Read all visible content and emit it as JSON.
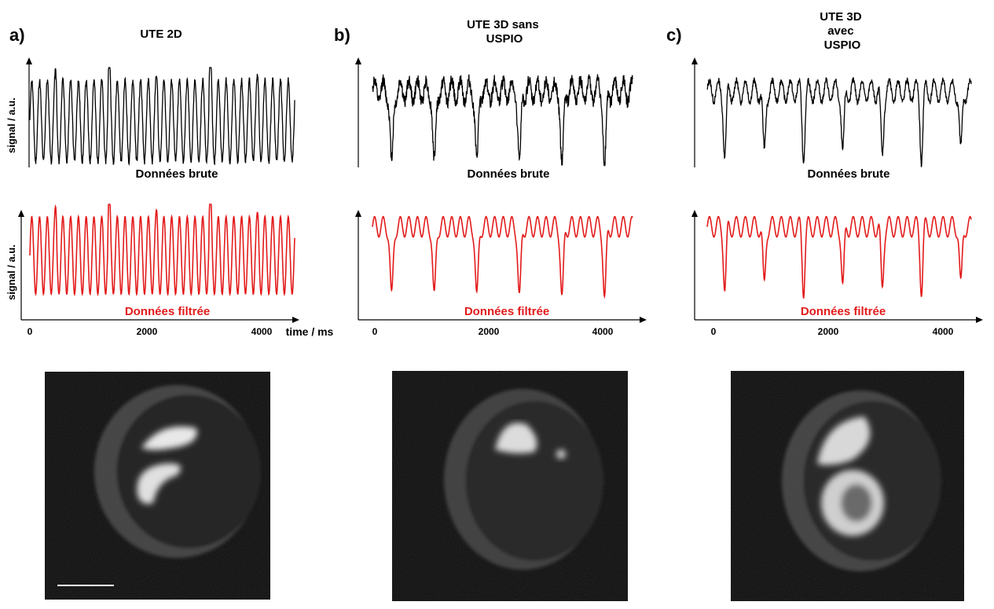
{
  "chart_data": [
    {
      "panel": "a)",
      "title": "UTE 2D",
      "type": "line",
      "ylabel": "signal / a.u.",
      "xlabel": "time / ms",
      "x_ticks": [
        "0",
        "2000",
        "4000"
      ],
      "xlim": [
        0,
        4600
      ],
      "raw_caption": "Données brute",
      "filtered_caption": "Données filtrée",
      "series": [
        {
          "trace": "raw",
          "color": "#000000",
          "cardiac_period_ms": 135,
          "respiratory_period_ms": 880
        },
        {
          "trace": "filtered",
          "color": "#e31b1b",
          "cardiac_period_ms": 135,
          "respiratory_period_ms": 880
        }
      ]
    },
    {
      "panel": "b)",
      "title": "UTE 3D sans\nUSPIO",
      "type": "line",
      "x_ticks": [
        "0",
        "2000",
        "4000"
      ],
      "xlim": [
        0,
        4700
      ],
      "raw_caption": "Données brute",
      "filtered_caption": "Données filtrée",
      "series": [
        {
          "trace": "raw",
          "color": "#000000",
          "cardiac_period_ms": 155,
          "respiratory_period_ms": 770
        },
        {
          "trace": "filtered",
          "color": "#e31b1b",
          "cardiac_period_ms": 155,
          "respiratory_period_ms": 770
        }
      ]
    },
    {
      "panel": "c)",
      "title": "UTE 3D\navec\nUSPIO",
      "type": "line",
      "x_ticks": [
        "0",
        "2000",
        "4000"
      ],
      "xlim": [
        0,
        4700
      ],
      "raw_caption": "Données brute",
      "filtered_caption": "Données filtrée",
      "series": [
        {
          "trace": "raw",
          "color": "#000000",
          "cardiac_period_ms": 160,
          "respiratory_period_ms": 700
        },
        {
          "trace": "filtered",
          "color": "#e31b1b",
          "cardiac_period_ms": 160,
          "respiratory_period_ms": 700
        }
      ]
    }
  ],
  "images": [
    {
      "panel": "a)",
      "description_icon": "mri-heart-short-axis",
      "has_scale_bar": true
    },
    {
      "panel": "b)",
      "description_icon": "mri-heart-short-axis",
      "has_scale_bar": false
    },
    {
      "panel": "c)",
      "description_icon": "mri-heart-short-axis",
      "has_scale_bar": false
    }
  ]
}
